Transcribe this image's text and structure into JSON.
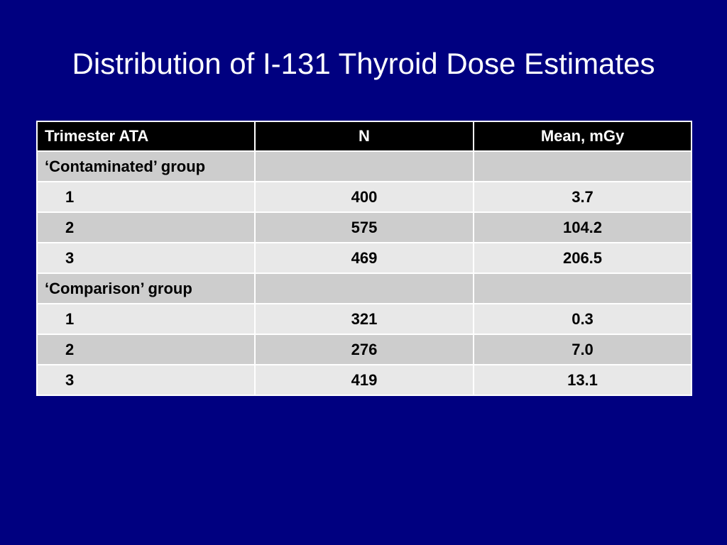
{
  "slide": {
    "title": "Distribution of I-131 Thyroid Dose Estimates",
    "background_color": "#000080"
  },
  "table": {
    "headers": [
      "Trimester ATA",
      "N",
      "Mean, mGy"
    ],
    "rows": [
      {
        "label": "‘Contaminated’ group",
        "n": "",
        "mean": "",
        "type": "group"
      },
      {
        "label": "1",
        "n": "400",
        "mean": "3.7",
        "type": "data"
      },
      {
        "label": "2",
        "n": "575",
        "mean": "104.2",
        "type": "data"
      },
      {
        "label": "3",
        "n": "469",
        "mean": "206.5",
        "type": "data"
      },
      {
        "label": "‘Comparison’ group",
        "n": "",
        "mean": "",
        "type": "group"
      },
      {
        "label": "1",
        "n": "321",
        "mean": "0.3",
        "type": "data"
      },
      {
        "label": "2",
        "n": "276",
        "mean": "7.0",
        "type": "data"
      },
      {
        "label": "3",
        "n": "419",
        "mean": "13.1",
        "type": "data"
      }
    ],
    "header_color": "#000000",
    "row_color_dark": "#cdcdcd",
    "row_color_light": "#e8e8e8"
  }
}
